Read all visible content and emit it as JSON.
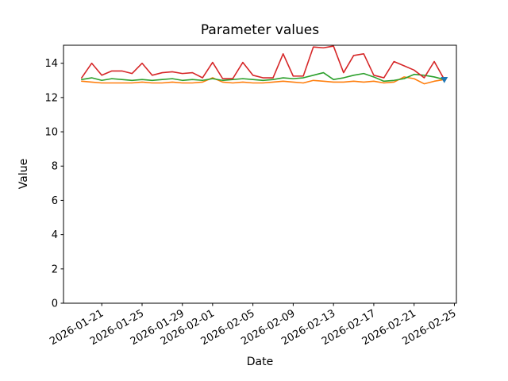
{
  "figure": {
    "background": "#ffffff",
    "text_color": "#000000"
  },
  "chart_data": {
    "type": "line",
    "title": "Parameter values",
    "xlabel": "Date",
    "ylabel": "Value",
    "grid": false,
    "legend": null,
    "x_dates": [
      "2026-01-19",
      "2026-01-20",
      "2026-01-21",
      "2026-01-22",
      "2026-01-23",
      "2026-01-24",
      "2026-01-25",
      "2026-01-26",
      "2026-01-27",
      "2026-01-28",
      "2026-01-29",
      "2026-01-30",
      "2026-01-31",
      "2026-02-01",
      "2026-02-02",
      "2026-02-03",
      "2026-02-04",
      "2026-02-05",
      "2026-02-06",
      "2026-02-07",
      "2026-02-08",
      "2026-02-09",
      "2026-02-10",
      "2026-02-11",
      "2026-02-12",
      "2026-02-13",
      "2026-02-14",
      "2026-02-15",
      "2026-02-16",
      "2026-02-17",
      "2026-02-18",
      "2026-02-19",
      "2026-02-20",
      "2026-02-21",
      "2026-02-22",
      "2026-02-23",
      "2026-02-24"
    ],
    "series": [
      {
        "name": "series-orange",
        "color": "#ff7f0e",
        "values": [
          12.95,
          12.9,
          12.85,
          12.85,
          12.85,
          12.85,
          12.9,
          12.85,
          12.85,
          12.9,
          12.85,
          12.85,
          12.9,
          13.15,
          12.9,
          12.85,
          12.9,
          12.85,
          12.85,
          12.9,
          12.95,
          12.9,
          12.85,
          13.0,
          12.95,
          12.9,
          12.9,
          12.95,
          12.9,
          12.95,
          12.85,
          12.9,
          13.2,
          13.1,
          12.8,
          12.95,
          13.05
        ]
      },
      {
        "name": "series-green",
        "color": "#2ca02c",
        "values": [
          13.05,
          13.15,
          13.0,
          13.1,
          13.05,
          13.0,
          13.05,
          13.0,
          13.05,
          13.1,
          13.0,
          13.05,
          13.0,
          13.1,
          13.0,
          13.05,
          13.1,
          13.05,
          13.0,
          13.05,
          13.15,
          13.1,
          13.15,
          13.3,
          13.45,
          13.05,
          13.15,
          13.3,
          13.4,
          13.2,
          12.95,
          13.0,
          13.1,
          13.35,
          13.3,
          13.2,
          13.05
        ]
      },
      {
        "name": "series-red",
        "color": "#d62728",
        "values": [
          13.15,
          14.0,
          13.3,
          13.55,
          13.55,
          13.4,
          14.0,
          13.3,
          13.45,
          13.5,
          13.4,
          13.45,
          13.15,
          14.05,
          13.1,
          13.1,
          14.05,
          13.3,
          13.15,
          13.15,
          14.55,
          13.25,
          13.25,
          14.95,
          14.9,
          15.0,
          13.45,
          14.45,
          14.55,
          13.3,
          13.15,
          14.1,
          13.85,
          13.6,
          13.15,
          14.1,
          13.05
        ]
      }
    ],
    "end_marker": {
      "name": "series-blue-marker",
      "color": "#1f77b4",
      "shape": "triangle-down",
      "date": "2026-02-24",
      "value": 13.05
    },
    "xticks": {
      "labels": [
        "2026-01-21",
        "2026-01-25",
        "2026-01-29",
        "2026-02-01",
        "2026-02-05",
        "2026-02-09",
        "2026-02-13",
        "2026-02-17",
        "2026-02-21",
        "2026-02-25"
      ],
      "day_index": [
        2,
        6,
        10,
        13,
        17,
        21,
        25,
        29,
        33,
        37
      ],
      "rotation_deg": -30
    },
    "yticks": [
      "0",
      "2",
      "4",
      "6",
      "8",
      "10",
      "12",
      "14"
    ],
    "ytick_values": [
      0,
      2,
      4,
      6,
      8,
      10,
      12,
      14
    ],
    "xlim_days": [
      -1.8,
      37.2
    ],
    "ylim": [
      0,
      15.05
    ]
  }
}
